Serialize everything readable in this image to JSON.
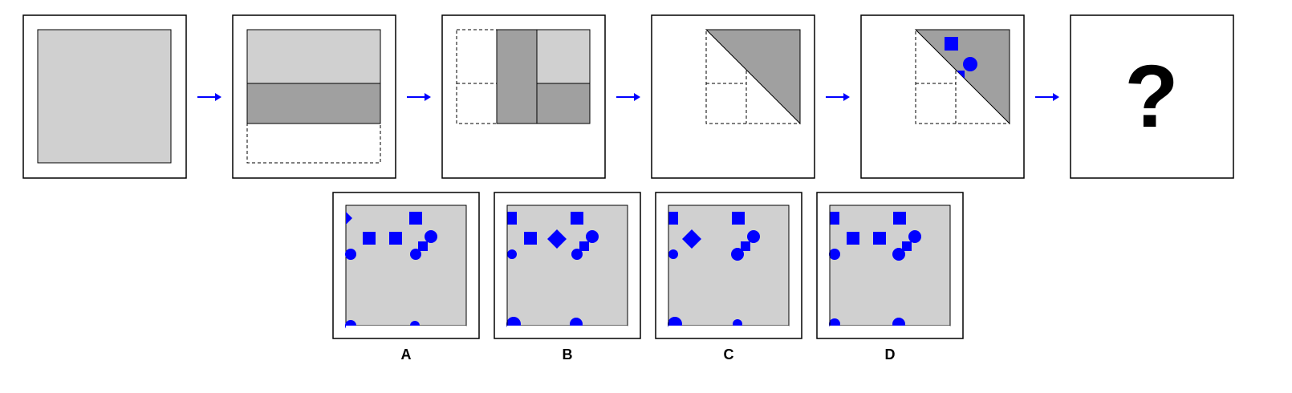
{
  "colors": {
    "paper_light": "#d0d0d0",
    "paper_dark": "#a0a0a0",
    "hole": "#0000ff",
    "arrow": "#0000ff",
    "frame": "#000000"
  },
  "sequence": {
    "steps": [
      "unfolded-paper",
      "fold-up",
      "fold-left",
      "fold-diagonal",
      "punch-holes"
    ],
    "question_mark": "?"
  },
  "options": [
    {
      "label": "A"
    },
    {
      "label": "B"
    },
    {
      "label": "C"
    },
    {
      "label": "D"
    }
  ]
}
